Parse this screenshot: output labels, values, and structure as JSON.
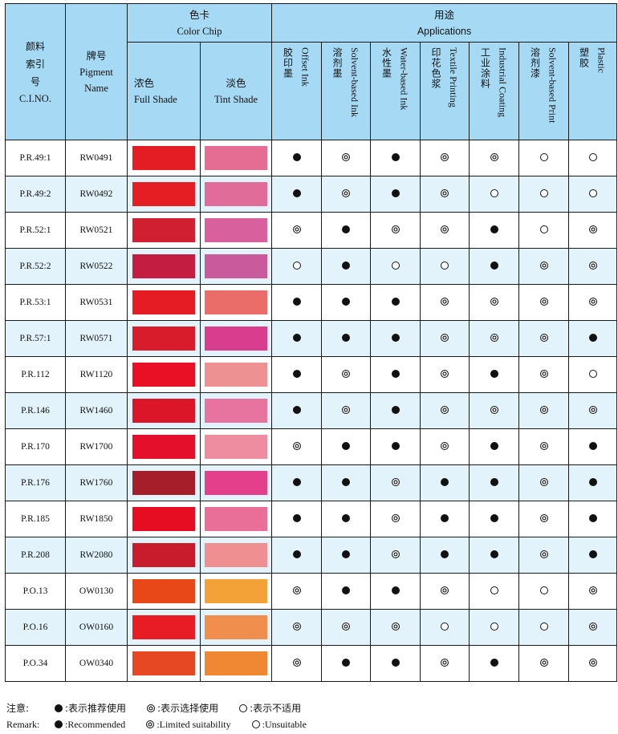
{
  "headers": {
    "cino_zh": "颜料索引号",
    "cino_en": "C.I.NO.",
    "pigment_zh": "牌号",
    "pigment_en": "Pigment Name",
    "color_chip_zh": "色卡",
    "color_chip_en": "Color Chip",
    "full_shade_zh": "浓色",
    "full_shade_en": "Full Shade",
    "tint_shade_zh": "淡色",
    "tint_shade_en": "Tint Shade",
    "applications_zh": "用途",
    "applications_en": "Applications",
    "apps": [
      {
        "zh": "胶印墨",
        "en": "Offset Ink"
      },
      {
        "zh": "溶剂墨",
        "en": "Solvent-based Ink"
      },
      {
        "zh": "水性墨",
        "en": "Water-based Ink"
      },
      {
        "zh": "印花色浆",
        "en": "Textile Printing"
      },
      {
        "zh": "工业涂料",
        "en": "Industrial Coating"
      },
      {
        "zh": "溶剂漆",
        "en": "Solvent-based Print"
      },
      {
        "zh": "塑胶",
        "en": "Plastic"
      }
    ]
  },
  "rows": [
    {
      "cino": "P.R.49:1",
      "name": "RW0491",
      "full": "#e41c24",
      "tint": "#e56d94",
      "apps": [
        "R",
        "L",
        "R",
        "L",
        "L",
        "U",
        "U"
      ]
    },
    {
      "cino": "P.R.49:2",
      "name": "RW0492",
      "full": "#e41e23",
      "tint": "#e06d99",
      "apps": [
        "R",
        "L",
        "R",
        "L",
        "U",
        "U",
        "U"
      ]
    },
    {
      "cino": "P.R.52:1",
      "name": "RW0521",
      "full": "#cf1f31",
      "tint": "#d8609c",
      "apps": [
        "L",
        "R",
        "L",
        "L",
        "R",
        "U",
        "L"
      ]
    },
    {
      "cino": "P.R.52:2",
      "name": "RW0522",
      "full": "#c31d42",
      "tint": "#c95a9b",
      "apps": [
        "U",
        "R",
        "U",
        "U",
        "R",
        "L",
        "L"
      ]
    },
    {
      "cino": "P.R.53:1",
      "name": "RW0531",
      "full": "#e61c24",
      "tint": "#ea6d6a",
      "apps": [
        "R",
        "R",
        "R",
        "L",
        "L",
        "L",
        "L"
      ]
    },
    {
      "cino": "P.R.57:1",
      "name": "RW0571",
      "full": "#d91c2b",
      "tint": "#d93d8e",
      "apps": [
        "R",
        "R",
        "R",
        "L",
        "L",
        "L",
        "R"
      ]
    },
    {
      "cino": "P.R.112",
      "name": "RW1120",
      "full": "#e90f25",
      "tint": "#ed9193",
      "apps": [
        "R",
        "L",
        "R",
        "L",
        "R",
        "L",
        "U"
      ]
    },
    {
      "cino": "P.R.146",
      "name": "RW1460",
      "full": "#da1628",
      "tint": "#e6749e",
      "apps": [
        "R",
        "L",
        "R",
        "L",
        "L",
        "L",
        "L"
      ]
    },
    {
      "cino": "P.R.170",
      "name": "RW1700",
      "full": "#e40f2b",
      "tint": "#ef8da0",
      "apps": [
        "L",
        "R",
        "R",
        "L",
        "R",
        "L",
        "R"
      ]
    },
    {
      "cino": "P.R.176",
      "name": "RW1760",
      "full": "#a51e2a",
      "tint": "#e43f8a",
      "apps": [
        "R",
        "R",
        "L",
        "R",
        "R",
        "L",
        "R"
      ]
    },
    {
      "cino": "P.R.185",
      "name": "RW1850",
      "full": "#e60d22",
      "tint": "#ea6f98",
      "apps": [
        "R",
        "R",
        "L",
        "R",
        "R",
        "L",
        "R"
      ]
    },
    {
      "cino": "P.R.208",
      "name": "RW2080",
      "full": "#c81c2c",
      "tint": "#ef8f92",
      "apps": [
        "R",
        "R",
        "L",
        "R",
        "R",
        "L",
        "R"
      ]
    },
    {
      "cino": "P.O.13",
      "name": "OW0130",
      "full": "#e84718",
      "tint": "#f3a237",
      "apps": [
        "L",
        "R",
        "R",
        "L",
        "U",
        "U",
        "L"
      ]
    },
    {
      "cino": "P.O.16",
      "name": "OW0160",
      "full": "#e71c24",
      "tint": "#ef8e4d",
      "apps": [
        "L",
        "L",
        "L",
        "U",
        "U",
        "U",
        "L"
      ]
    },
    {
      "cino": "P.O.34",
      "name": "OW0340",
      "full": "#e74824",
      "tint": "#f08732",
      "apps": [
        "L",
        "R",
        "R",
        "L",
        "R",
        "L",
        "L"
      ]
    }
  ],
  "notes": {
    "label_zh": "注意:",
    "label_en": "Remark:",
    "rec_zh": ":表示推荐使用",
    "ltd_zh": ":表示选择使用",
    "uns_zh": ":表示不适用",
    "rec_en": ":Recommended",
    "ltd_en": ":Limited suitability",
    "uns_en": ":Unsuitable"
  }
}
